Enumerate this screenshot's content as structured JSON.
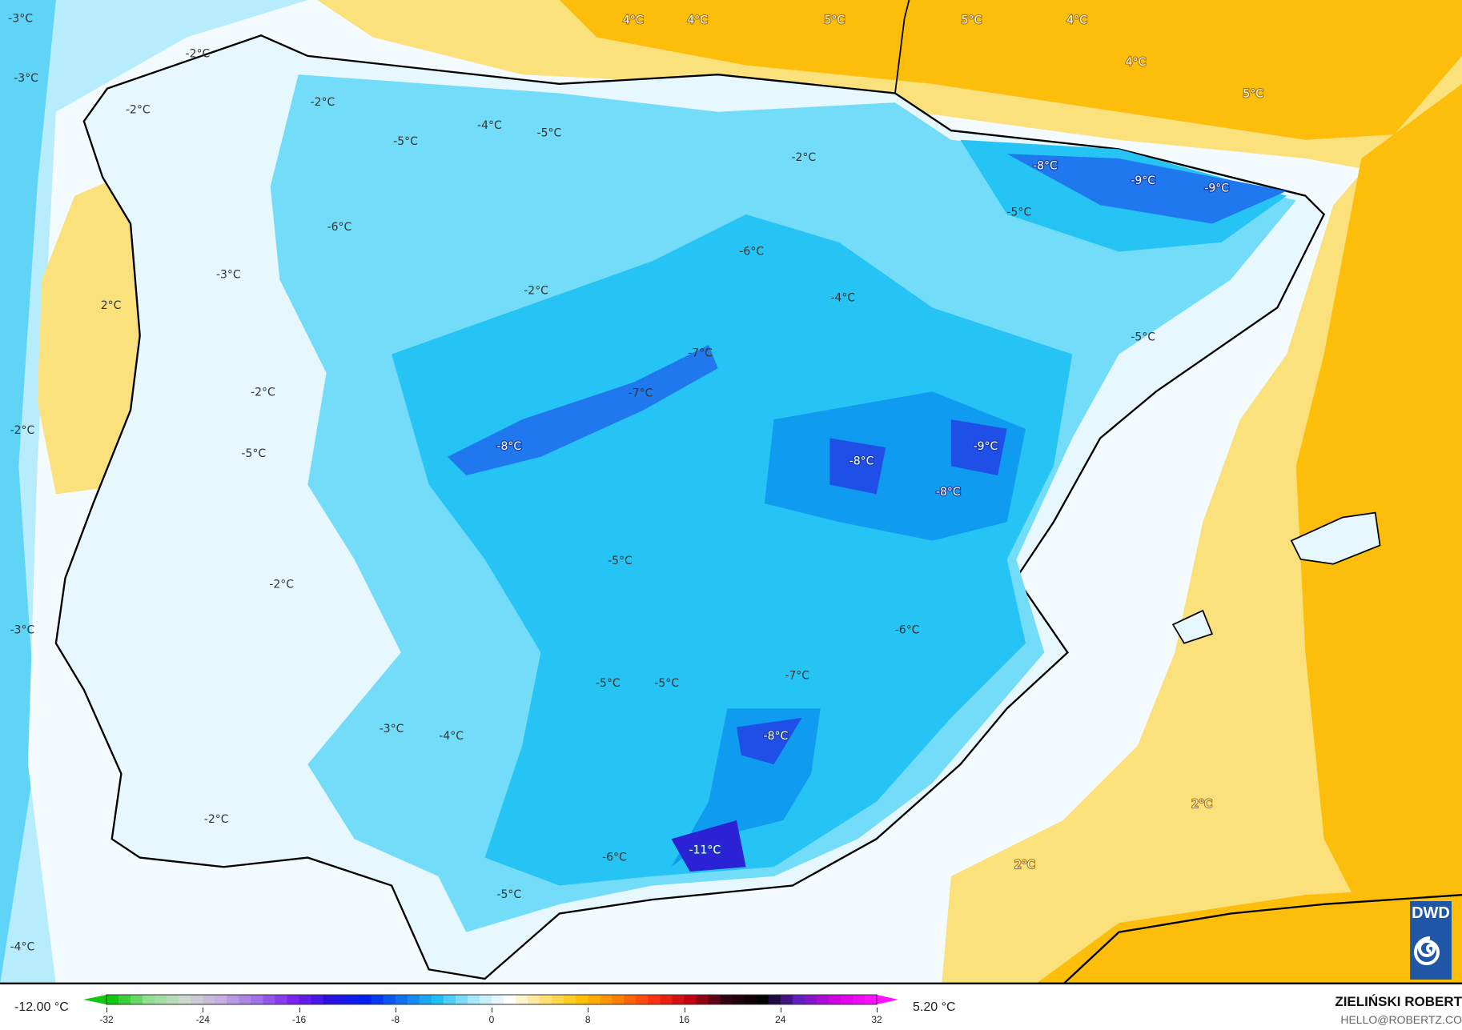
{
  "map": {
    "unit": "°C",
    "colors": {
      "warm_sea": "#fbe17c",
      "warm_north": "#fcbe0a",
      "orange": "#f8a200",
      "light_cold": "#b6ecfb",
      "cold": "#25c4f4",
      "colder": "#0f9cf0",
      "coldest": "#1f4fe6",
      "extreme": "#2a22d4",
      "neutral": "#f4fbff"
    },
    "labels": [
      "-3°C",
      "-3°C",
      "-2°C",
      "-2°C",
      "-2°C",
      "4°C",
      "4°C",
      "5°C",
      "5°C",
      "4°C",
      "4°C",
      "5°C",
      "-4°C",
      "-5°C",
      "-5°C",
      "-2°C",
      "-8°C",
      "-9°C",
      "-9°C",
      "-5°C",
      "-6°C",
      "-6°C",
      "-3°C",
      "-2°C",
      "-4°C",
      "2°C",
      "-5°C",
      "-7°C",
      "-7°C",
      "-2°C",
      "-2°C",
      "-8°C",
      "-9°C",
      "-8°C",
      "-5°C",
      "-8°C",
      "-5°C",
      "-2°C",
      "-3°C",
      "-6°C",
      "-7°C",
      "-5°C",
      "-5°C",
      "-3°C",
      "-4°C",
      "-8°C",
      "2°C",
      "-2°C",
      "-11°C",
      "-6°C",
      "2°C",
      "-5°C",
      "-4°C"
    ],
    "logo": "DWD"
  },
  "legend": {
    "min_label": "-12.00 °C",
    "max_label": "5.20 °C",
    "ticks": [
      "-32",
      "-24",
      "-16",
      "-8",
      "0",
      "8",
      "16",
      "24",
      "32"
    ],
    "range": [
      -32,
      32
    ],
    "palette": [
      "#11c811",
      "#8fe08f",
      "#cfd8cf",
      "#c6aee0",
      "#a070e8",
      "#7a22f0",
      "#2a10e0",
      "#0020f0",
      "#1070f0",
      "#20c0f5",
      "#a8e8fb",
      "#ffffff",
      "#ffe070",
      "#ffc000",
      "#ff8000",
      "#ff3010",
      "#c00010",
      "#300010",
      "#000000",
      "#6020c0",
      "#d000e0",
      "#ff10ff"
    ]
  },
  "credit": {
    "name": "ZIELIŃSKI ROBERT",
    "email": "HELLO@ROBERTZ.CO"
  }
}
